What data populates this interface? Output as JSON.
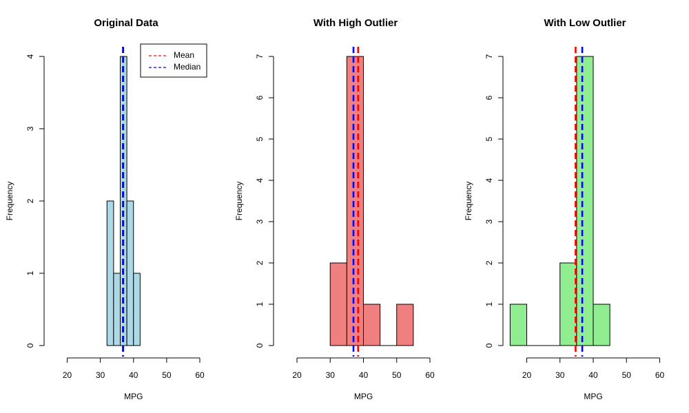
{
  "chart_data": [
    {
      "type": "bar",
      "title": "Original Data",
      "xlabel": "MPG",
      "ylabel": "Frequency",
      "xlim": [
        20,
        60
      ],
      "ylim": [
        0,
        4
      ],
      "x_ticks": [
        "20",
        "30",
        "40",
        "50",
        "60"
      ],
      "y_ticks": [
        "0",
        "1",
        "2",
        "3",
        "4"
      ],
      "bins": [
        {
          "start": 32,
          "end": 34,
          "count": 2
        },
        {
          "start": 34,
          "end": 36,
          "count": 1
        },
        {
          "start": 36,
          "end": 38,
          "count": 4
        },
        {
          "start": 38,
          "end": 40,
          "count": 2
        },
        {
          "start": 40,
          "end": 42,
          "count": 1
        }
      ],
      "mean": 36.8,
      "median": 36.9,
      "bar_color": "#add8e6",
      "legend": {
        "position": "top-right",
        "entries": [
          {
            "label": "Mean",
            "color": "#ff0000"
          },
          {
            "label": "Median",
            "color": "#0000ff"
          }
        ]
      }
    },
    {
      "type": "bar",
      "title": "With High Outlier",
      "xlabel": "MPG",
      "ylabel": "Frequency",
      "xlim": [
        20,
        60
      ],
      "ylim": [
        0,
        7
      ],
      "x_ticks": [
        "20",
        "30",
        "40",
        "50",
        "60"
      ],
      "y_ticks": [
        "0",
        "1",
        "2",
        "3",
        "4",
        "5",
        "6",
        "7"
      ],
      "bins": [
        {
          "start": 30,
          "end": 35,
          "count": 2
        },
        {
          "start": 35,
          "end": 40,
          "count": 7
        },
        {
          "start": 40,
          "end": 45,
          "count": 1
        },
        {
          "start": 45,
          "end": 50,
          "count": 0
        },
        {
          "start": 50,
          "end": 55,
          "count": 1
        }
      ],
      "mean": 38.4,
      "median": 37.0,
      "bar_color": "#f08080"
    },
    {
      "type": "bar",
      "title": "With Low Outlier",
      "xlabel": "MPG",
      "ylabel": "Frequency",
      "xlim": [
        20,
        60
      ],
      "ylim": [
        0,
        7
      ],
      "x_ticks": [
        "20",
        "30",
        "40",
        "50",
        "60"
      ],
      "y_ticks": [
        "0",
        "1",
        "2",
        "3",
        "4",
        "5",
        "6",
        "7"
      ],
      "bins": [
        {
          "start": 15,
          "end": 20,
          "count": 1
        },
        {
          "start": 20,
          "end": 25,
          "count": 0
        },
        {
          "start": 25,
          "end": 30,
          "count": 0
        },
        {
          "start": 30,
          "end": 35,
          "count": 2
        },
        {
          "start": 35,
          "end": 40,
          "count": 7
        },
        {
          "start": 40,
          "end": 45,
          "count": 1
        }
      ],
      "mean": 34.7,
      "median": 36.7,
      "bar_color": "#90ee90"
    }
  ],
  "colors": {
    "mean_line": "#ff0000",
    "median_line": "#0000ff",
    "bar_stroke": "#000000"
  }
}
